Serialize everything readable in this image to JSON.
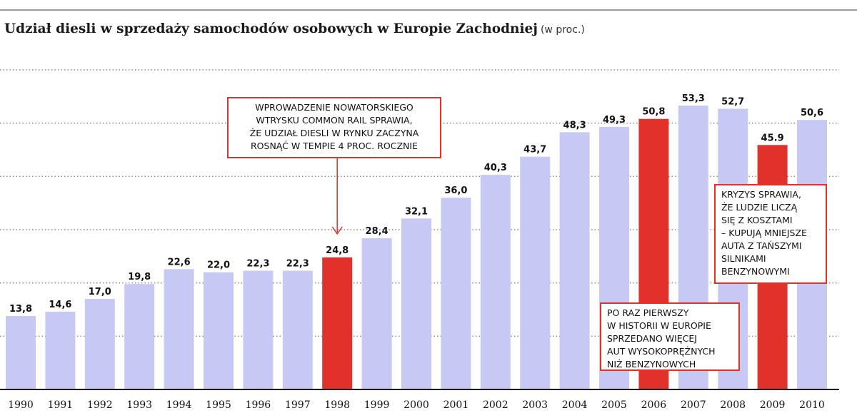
{
  "title": "Udział diesli w sprzedaży samochodów osobowych w Europie Zachodniej",
  "unit": "(w proc.)",
  "colors": {
    "bar": "#c8c8f4",
    "highlight": "#e2302a",
    "grid": "#8a8a8a",
    "text": "#111111"
  },
  "chart_data": {
    "type": "bar",
    "categories": [
      "1990",
      "1991",
      "1992",
      "1993",
      "1994",
      "1995",
      "1996",
      "1997",
      "1998",
      "1999",
      "2000",
      "2001",
      "2002",
      "2003",
      "2004",
      "2005",
      "2006",
      "2007",
      "2008",
      "2009",
      "2010"
    ],
    "values": [
      13.8,
      14.6,
      17.0,
      19.8,
      22.6,
      22.0,
      22.3,
      22.3,
      24.8,
      28.4,
      32.1,
      36.0,
      40.3,
      43.7,
      48.3,
      49.3,
      50.8,
      53.3,
      52.7,
      45.9,
      50.6
    ],
    "labels": [
      "13,8",
      "14,6",
      "17,0",
      "19,8",
      "22,6",
      "22,0",
      "22,3",
      "22,3",
      "24,8",
      "28,4",
      "32,1",
      "36,0",
      "40,3",
      "43,7",
      "48,3",
      "49,3",
      "50,8",
      "53,3",
      "52,7",
      "45.9",
      "50,6"
    ],
    "highlighted": [
      "1998",
      "2006",
      "2009"
    ],
    "ylim": [
      0,
      60
    ],
    "gridlines": [
      10,
      20,
      30,
      40,
      50,
      60
    ],
    "grid": true,
    "xlabel": "",
    "ylabel": ""
  },
  "annotations": {
    "y1998": "WPROWADZENIE NOWATORSKIEGO\nWTRYSKU COMMON RAIL SPRAWIA,\nŻE UDZIAŁ DIESLI W RYNKU ZACZYNA\nROSNĄĆ W TEMPIE 4 PROC. ROCZNIE",
    "y2009": "KRYZYS SPRAWIA,\nŻE LUDZIE LICZĄ\nSIĘ Z KOSZTAMI\n– KUPUJĄ MNIEJSZE\nAUTA Z TAŃSZYMI\nSILNIKAMI\nBENZYNOWYMI",
    "y2006": "PO RAZ PIERWSZY\nW HISTORII W EUROPIE\nSPRZEDANO WIĘCEJ\nAUT WYSOKOPRĘŻNYCH\nNIŻ BENZYNOWYCH"
  }
}
